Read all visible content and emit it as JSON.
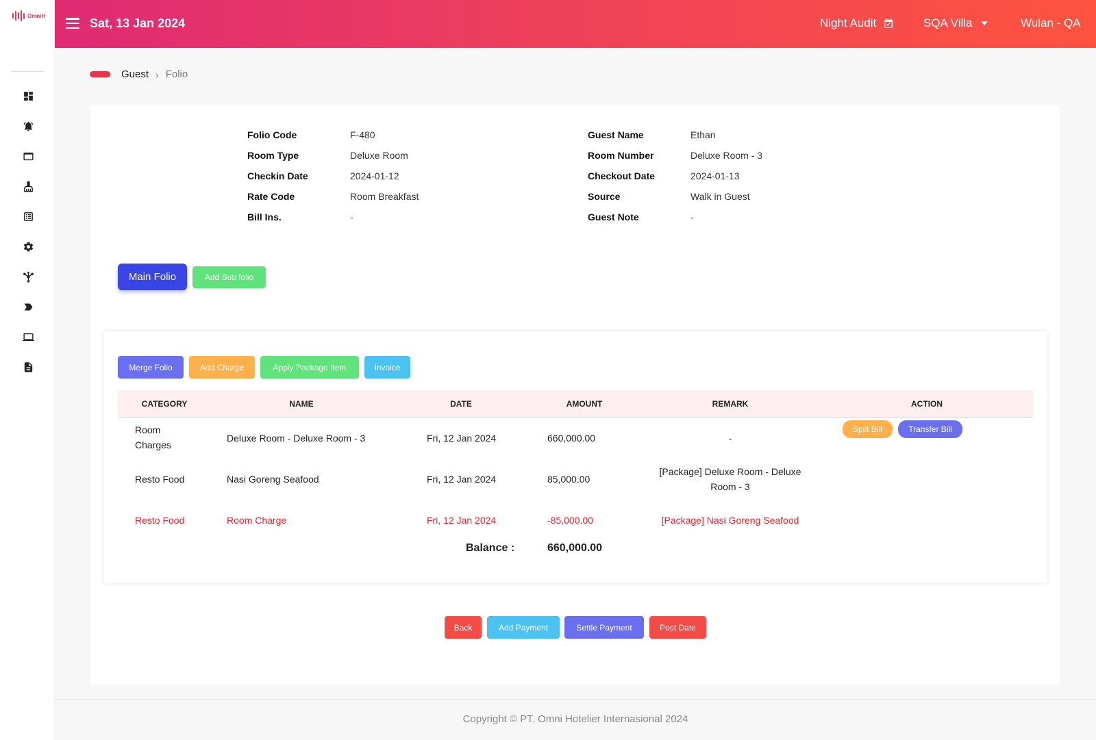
{
  "app": {
    "logo_text": "OmniH"
  },
  "header": {
    "date": "Sat, 13 Jan 2024",
    "night_audit": "Night Audit",
    "hotel": "SQA Villa",
    "user": "Wulan - QA"
  },
  "sidebar": {
    "items": [
      {
        "icon": "dashboard-icon"
      },
      {
        "icon": "alarm-icon"
      },
      {
        "icon": "window-icon"
      },
      {
        "icon": "cleaning-icon"
      },
      {
        "icon": "list-icon"
      },
      {
        "icon": "settings-icon"
      },
      {
        "icon": "network-icon"
      },
      {
        "icon": "label-icon"
      },
      {
        "icon": "laptop-icon"
      },
      {
        "icon": "document-icon"
      }
    ]
  },
  "breadcrumb": {
    "parent": "Guest",
    "separator": "›",
    "current": "Folio"
  },
  "folio_info": {
    "left": [
      {
        "label": "Folio Code",
        "value": "F-480"
      },
      {
        "label": "Room Type",
        "value": "Deluxe Room"
      },
      {
        "label": "Checkin Date",
        "value": "2024-01-12"
      },
      {
        "label": "Rate Code",
        "value": "Room Breakfast"
      },
      {
        "label": "Bill Ins.",
        "value": "-"
      }
    ],
    "right": [
      {
        "label": "Guest Name",
        "value": "Ethan"
      },
      {
        "label": "Room Number",
        "value": "Deluxe Room - 3"
      },
      {
        "label": "Checkout Date",
        "value": "2024-01-13"
      },
      {
        "label": "Source",
        "value": "Walk in Guest"
      },
      {
        "label": "Guest Note",
        "value": "-"
      }
    ]
  },
  "folio_tabs": {
    "main": "Main Folio",
    "add_sub": "Add Sub folio"
  },
  "toolbar": {
    "merge": "Merge Folio",
    "add_charge": "Add Charge",
    "apply_package": "Apply Package Item",
    "invoice": "Invoice"
  },
  "table": {
    "headers": [
      "CATEGORY",
      "NAME",
      "DATE",
      "AMOUNT",
      "REMARK",
      "ACTION"
    ],
    "rows": [
      {
        "category_line1": "Room",
        "category_line2": "Charges",
        "name": "Deluxe Room - Deluxe Room - 3",
        "date": "Fri, 12 Jan 2024",
        "amount": "660,000.00",
        "remark": "-",
        "actions": {
          "split": "Split Bill",
          "transfer": "Transfer Bill"
        }
      },
      {
        "category": "Resto Food",
        "name": "Nasi Goreng Seafood",
        "date": "Fri, 12 Jan 2024",
        "amount": "85,000.00",
        "remark_line1": "[Package] Deluxe Room - Deluxe",
        "remark_line2": "Room - 3"
      },
      {
        "category": "Resto Food",
        "name": "Room Charge",
        "date": "Fri, 12 Jan 2024",
        "amount": "-85,000.00",
        "remark": "[Package] Nasi Goreng Seafood"
      }
    ],
    "balance_label": "Balance :",
    "balance_value": "660,000.00"
  },
  "actions": {
    "back": "Back",
    "add_payment": "Add Payment",
    "settle_payment": "Settle Payment",
    "post_date": "Post Date"
  },
  "footer": {
    "copyright": "Copyright © PT. Omni Hotelier Internasional 2024"
  },
  "colors": {
    "primary": "#3a45e6",
    "green": "#5fe37a",
    "indigo": "#6a6ff0",
    "orange": "#ffb04a",
    "cyan": "#4cc2f2",
    "red": "#f44b46",
    "brand": "#e8344a"
  }
}
